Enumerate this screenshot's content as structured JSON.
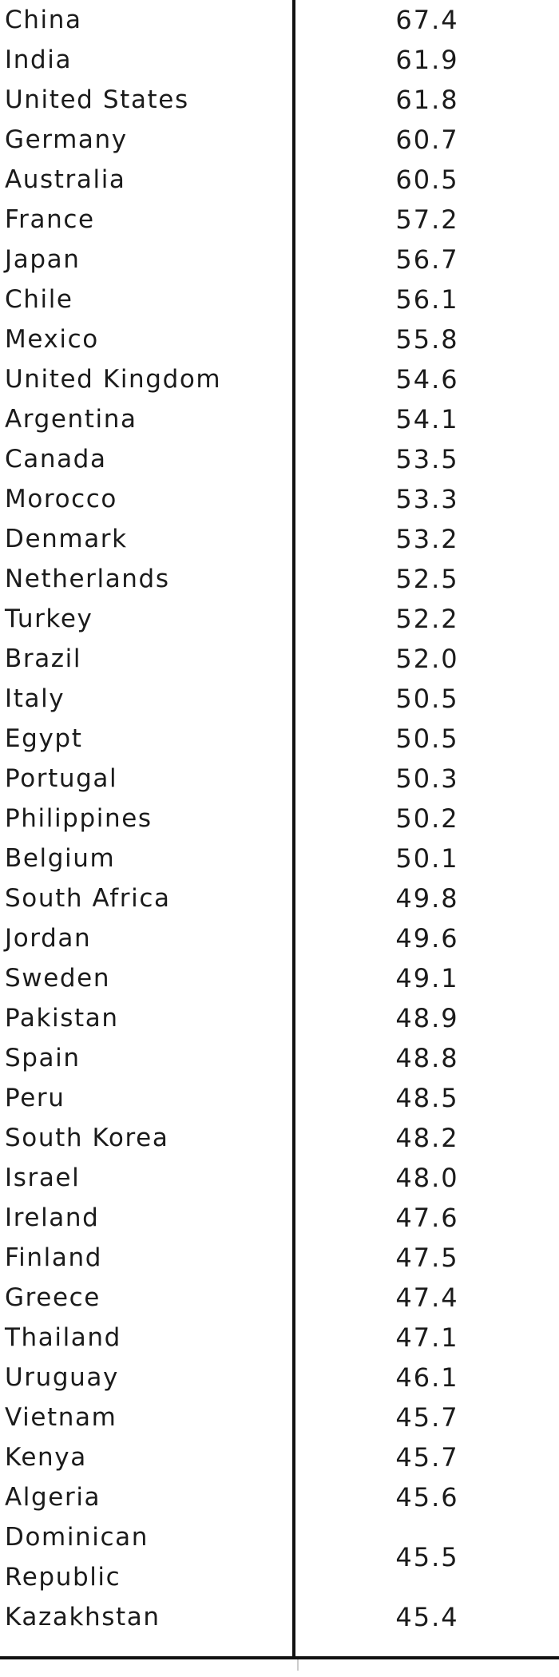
{
  "table": {
    "rows": [
      {
        "country": "China",
        "value": "67.4"
      },
      {
        "country": "India",
        "value": "61.9"
      },
      {
        "country": "United States",
        "value": "61.8"
      },
      {
        "country": "Germany",
        "value": "60.7"
      },
      {
        "country": "Australia",
        "value": "60.5"
      },
      {
        "country": "France",
        "value": "57.2"
      },
      {
        "country": "Japan",
        "value": "56.7"
      },
      {
        "country": "Chile",
        "value": "56.1"
      },
      {
        "country": "Mexico",
        "value": "55.8"
      },
      {
        "country": "United Kingdom",
        "value": "54.6"
      },
      {
        "country": "Argentina",
        "value": "54.1"
      },
      {
        "country": "Canada",
        "value": "53.5"
      },
      {
        "country": "Morocco",
        "value": "53.3"
      },
      {
        "country": "Denmark",
        "value": "53.2"
      },
      {
        "country": "Netherlands",
        "value": "52.5"
      },
      {
        "country": "Turkey",
        "value": "52.2"
      },
      {
        "country": "Brazil",
        "value": "52.0"
      },
      {
        "country": "Italy",
        "value": "50.5"
      },
      {
        "country": "Egypt",
        "value": "50.5"
      },
      {
        "country": "Portugal",
        "value": "50.3"
      },
      {
        "country": "Philippines",
        "value": "50.2"
      },
      {
        "country": "Belgium",
        "value": "50.1"
      },
      {
        "country": "South Africa",
        "value": "49.8"
      },
      {
        "country": "Jordan",
        "value": "49.6"
      },
      {
        "country": "Sweden",
        "value": "49.1"
      },
      {
        "country": "Pakistan",
        "value": "48.9"
      },
      {
        "country": "Spain",
        "value": "48.8"
      },
      {
        "country": "Peru",
        "value": "48.5"
      },
      {
        "country": "South Korea",
        "value": "48.2"
      },
      {
        "country": "Israel",
        "value": "48.0"
      },
      {
        "country": "Ireland",
        "value": "47.6"
      },
      {
        "country": "Finland",
        "value": "47.5"
      },
      {
        "country": "Greece",
        "value": "47.4"
      },
      {
        "country": "Thailand",
        "value": "47.1"
      },
      {
        "country": "Uruguay",
        "value": "46.1"
      },
      {
        "country": "Vietnam",
        "value": "45.7"
      },
      {
        "country": "Kenya",
        "value": "45.7"
      },
      {
        "country": "Algeria",
        "value": "45.6"
      },
      {
        "country": "Dominican Republic",
        "value": "45.5"
      },
      {
        "country": "Kazakhstan",
        "value": "45.4"
      }
    ]
  }
}
